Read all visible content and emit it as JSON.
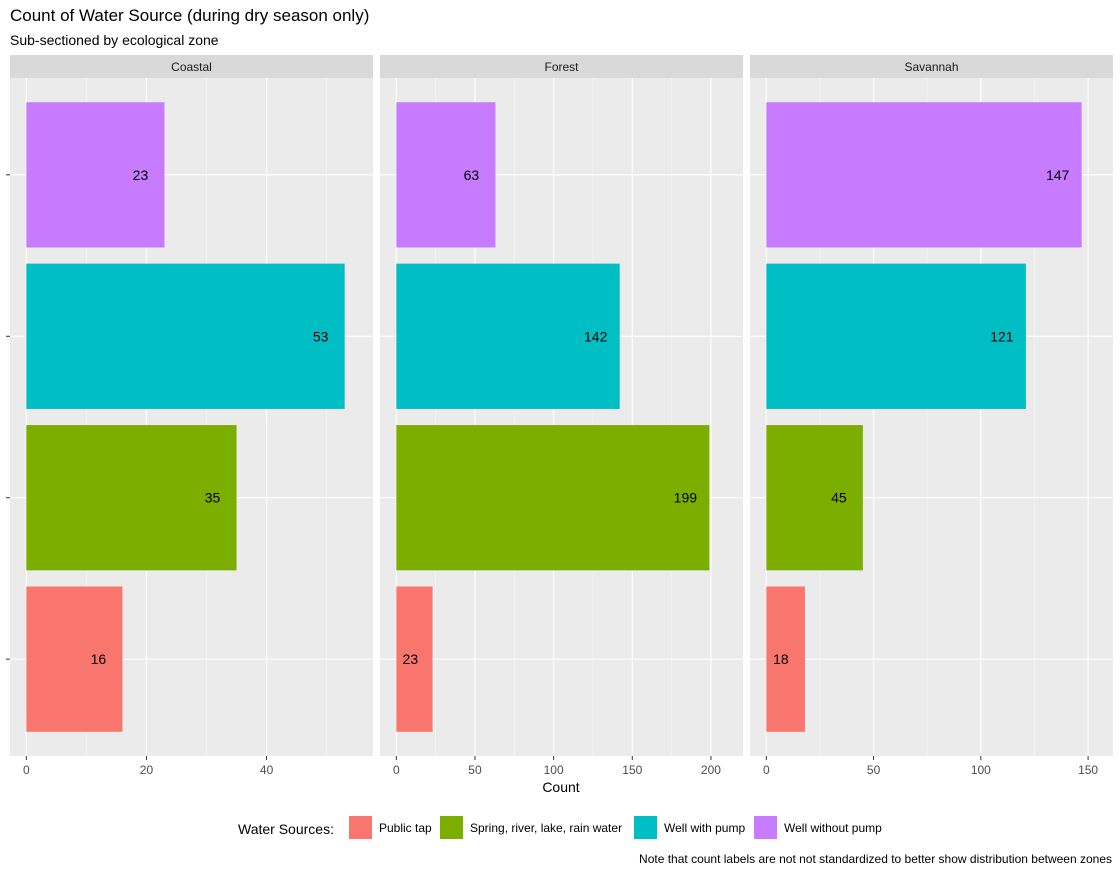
{
  "chart_data": {
    "type": "bar",
    "orientation": "horizontal",
    "title": "Count of Water Source (during dry season only)",
    "subtitle": "Sub-sectioned by ecological zone",
    "xlabel": "Count",
    "ylabel": "",
    "grid": true,
    "legend": {
      "title": "Water Sources:",
      "position": "bottom"
    },
    "caption": "Note that count labels are not not standardized to better show distribution between zones",
    "categories": [
      "Public tap",
      "Spring, river, lake, rain water",
      "Well with pump",
      "Well without pump"
    ],
    "colors": {
      "Public tap": "#F8766D",
      "Spring, river, lake, rain water": "#7CAE00",
      "Well with pump": "#00BFC4",
      "Well without pump": "#C77CFF"
    },
    "panels": [
      {
        "name": "Coastal",
        "xlim": [
          0,
          55
        ],
        "ticks": [
          0,
          20,
          40
        ],
        "values": [
          16,
          35,
          53,
          23
        ]
      },
      {
        "name": "Forest",
        "xlim": [
          0,
          210
        ],
        "ticks": [
          0,
          50,
          100,
          150,
          200
        ],
        "values": [
          23,
          199,
          142,
          63
        ]
      },
      {
        "name": "Savannah",
        "xlim": [
          0,
          154
        ],
        "ticks": [
          0,
          50,
          100,
          150
        ],
        "values": [
          18,
          45,
          121,
          147
        ]
      }
    ]
  }
}
